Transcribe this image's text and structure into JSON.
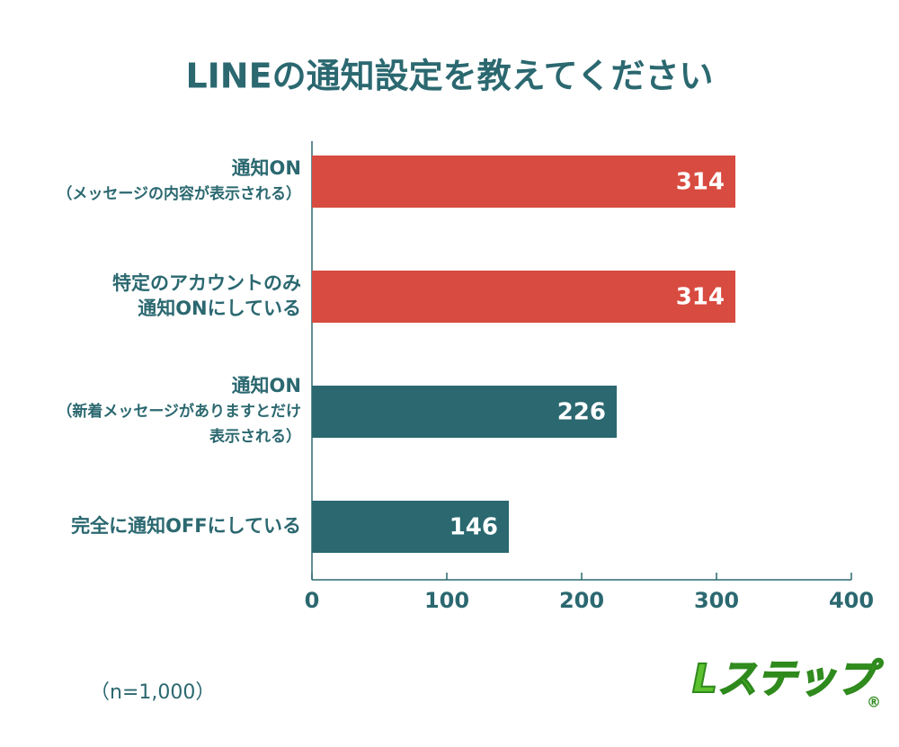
{
  "chart_data": {
    "type": "bar",
    "orientation": "horizontal",
    "title": "LINEの通知設定を教えてください",
    "categories": [
      [
        "通知ON",
        "（メッセージの内容が表示される）"
      ],
      [
        "特定のアカウントのみ",
        "通知ONにしている"
      ],
      [
        "通知ON",
        "（新着メッセージがありますとだけ",
        "表示される）"
      ],
      [
        "完全に通知OFFにしている"
      ]
    ],
    "values": [
      314,
      314,
      226,
      146
    ],
    "colors": [
      "#d84b40",
      "#d84b40",
      "#2b6870",
      "#2b6870"
    ],
    "xlim": [
      0,
      400
    ],
    "xticks": [
      0,
      100,
      200,
      300,
      400
    ],
    "note": "（n=1,000）",
    "logo": "Lステップ",
    "logo_mark": "®"
  }
}
